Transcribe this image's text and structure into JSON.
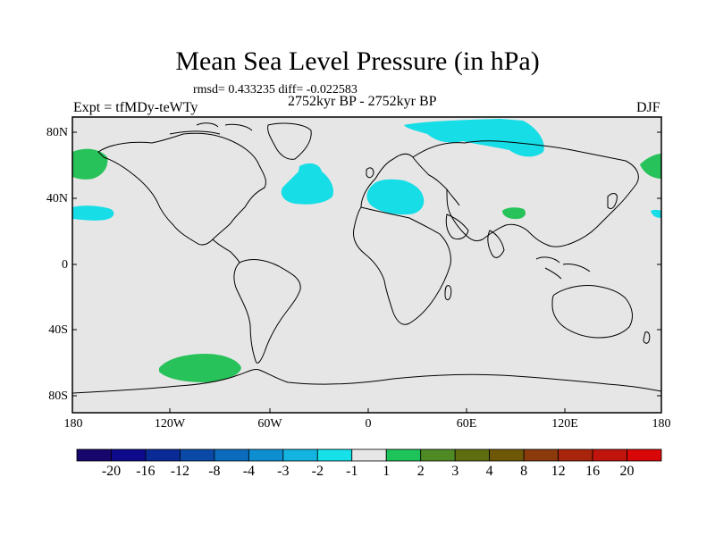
{
  "title": "Mean Sea Level Pressure (in hPa)",
  "stats": "rmsd= 0.433235 diff= -0.022583",
  "left_label": "Expt = tfMDy-teWTy",
  "center_label": "2752kyr BP - 2752kyr BP",
  "right_label": "DJF",
  "lat_ticks": [
    "80N",
    "40N",
    "0",
    "40S",
    "80S"
  ],
  "lon_ticks": [
    "180",
    "120W",
    "60W",
    "0",
    "60E",
    "120E",
    "180"
  ],
  "colorbar": {
    "labels": [
      "-20",
      "-16",
      "-12",
      "-8",
      "-4",
      "-3",
      "-2",
      "-1",
      "1",
      "2",
      "3",
      "4",
      "8",
      "12",
      "16",
      "20"
    ],
    "colors": [
      "#17066b",
      "#0d0a8c",
      "#0a2a96",
      "#0a4aa6",
      "#0b6bbd",
      "#0d8ed0",
      "#13b5e0",
      "#16e0e8",
      "#e6e6e6",
      "#1ec35a",
      "#4f8a24",
      "#5e6d10",
      "#6e5808",
      "#8a3a0b",
      "#a8250c",
      "#c0140c",
      "#d90707"
    ]
  },
  "colors": {
    "background": "#e6e6e6",
    "negative_anomaly": "#16dde6",
    "positive_anomaly": "#28c25a"
  }
}
